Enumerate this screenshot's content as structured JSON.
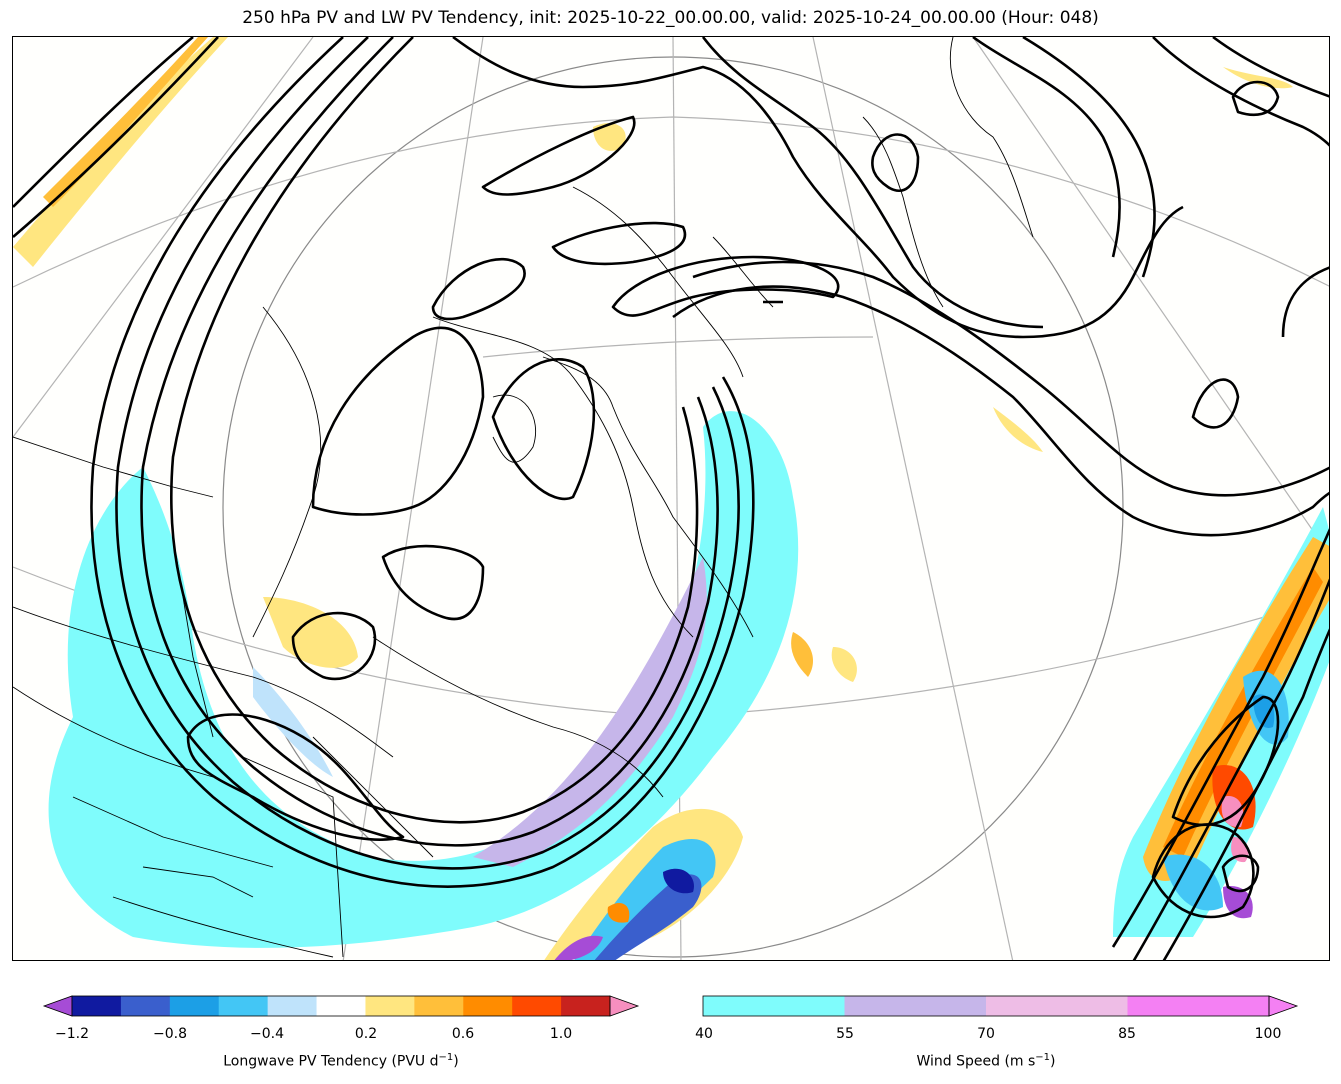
{
  "title": "250 hPa PV and LW PV Tendency, init: 2025-10-22_00.00.00, valid: 2025-10-24_00.00.00 (Hour: 048)",
  "colorbar_left": {
    "label": "Longwave PV Tendency (PVU d",
    "label_sup": "−1",
    "label_close": ")",
    "ticks": [
      "−1.2",
      "−0.8",
      "−0.4",
      "0.2",
      "0.6",
      "1.0"
    ],
    "bins": [
      -1.2,
      -1.0,
      -0.8,
      -0.6,
      -0.4,
      -0.2,
      0.2,
      0.4,
      0.6,
      0.8,
      1.0,
      1.2
    ],
    "colors": [
      "#101aa0",
      "#3a5fcd",
      "#1c9fe6",
      "#43c6f5",
      "#bfe3fb",
      "#ffffff",
      "#ffe680",
      "#ffbf3a",
      "#ff8c00",
      "#ff4a00",
      "#c8221e"
    ],
    "under_color": "#a64cd6",
    "over_color": "#f78fbf"
  },
  "colorbar_right": {
    "label": "Wind Speed (m s",
    "label_sup": "−1",
    "label_close": ")",
    "ticks": [
      "40",
      "55",
      "70",
      "85",
      "100"
    ],
    "colors": [
      "#7ffcfc",
      "#c6b6ea",
      "#eebde6",
      "#f480f3"
    ]
  }
}
